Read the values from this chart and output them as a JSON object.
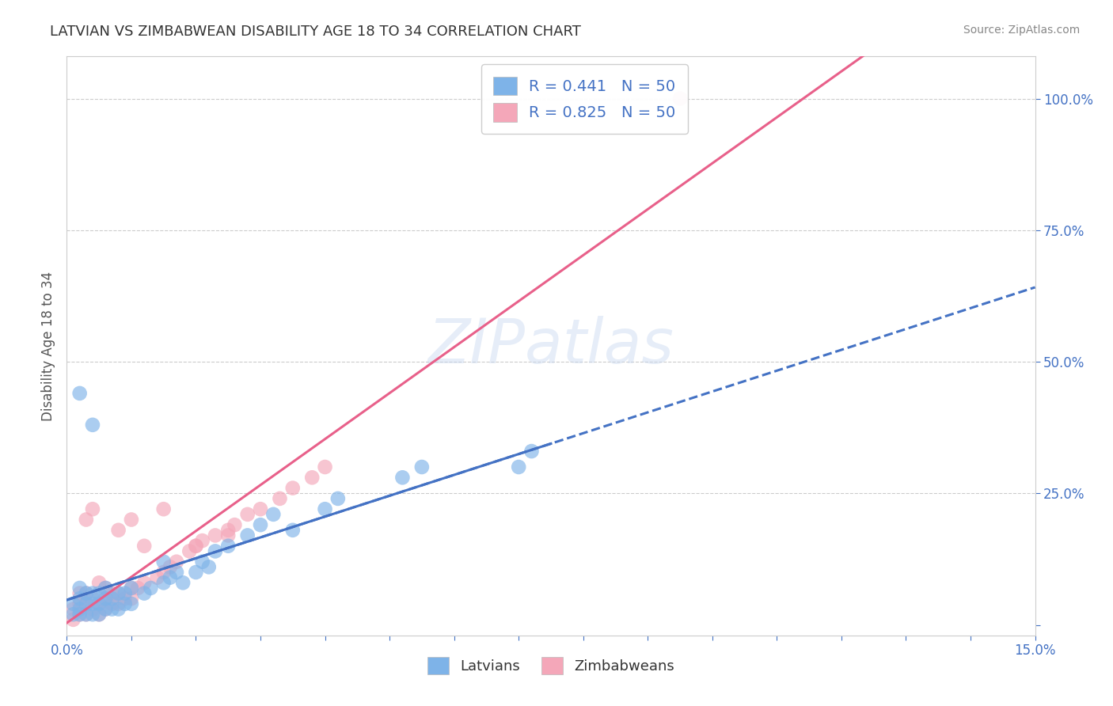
{
  "title": "LATVIAN VS ZIMBABWEAN DISABILITY AGE 18 TO 34 CORRELATION CHART",
  "source_text": "Source: ZipAtlas.com",
  "ylabel_text": "Disability Age 18 to 34",
  "xlim": [
    0.0,
    0.15
  ],
  "ylim": [
    -0.02,
    1.08
  ],
  "latvian_color": "#7eb3e8",
  "zimbabwean_color": "#f4a7b9",
  "latvian_line_color": "#4472c4",
  "zimbabwean_line_color": "#e8608a",
  "legend_R_latvian": "R = 0.441   N = 50",
  "legend_R_zimbabwean": "R = 0.825   N = 50",
  "legend_label_latvian": "Latvians",
  "legend_label_zimbabwean": "Zimbabweans",
  "background_color": "#ffffff",
  "grid_color": "#cccccc",
  "watermark": "ZIPatlas",
  "latvian_x": [
    0.001,
    0.001,
    0.002,
    0.002,
    0.002,
    0.002,
    0.003,
    0.003,
    0.003,
    0.004,
    0.004,
    0.004,
    0.005,
    0.005,
    0.005,
    0.006,
    0.006,
    0.006,
    0.007,
    0.007,
    0.008,
    0.008,
    0.009,
    0.009,
    0.01,
    0.01,
    0.012,
    0.013,
    0.015,
    0.015,
    0.016,
    0.017,
    0.018,
    0.02,
    0.021,
    0.022,
    0.023,
    0.025,
    0.028,
    0.03,
    0.032,
    0.035,
    0.04,
    0.042,
    0.052,
    0.055,
    0.07,
    0.072,
    0.002,
    0.004
  ],
  "latvian_y": [
    0.02,
    0.04,
    0.02,
    0.03,
    0.05,
    0.07,
    0.02,
    0.04,
    0.06,
    0.02,
    0.04,
    0.06,
    0.02,
    0.04,
    0.06,
    0.03,
    0.05,
    0.07,
    0.03,
    0.05,
    0.03,
    0.06,
    0.04,
    0.06,
    0.04,
    0.07,
    0.06,
    0.07,
    0.08,
    0.12,
    0.09,
    0.1,
    0.08,
    0.1,
    0.12,
    0.11,
    0.14,
    0.15,
    0.17,
    0.19,
    0.21,
    0.18,
    0.22,
    0.24,
    0.28,
    0.3,
    0.3,
    0.33,
    0.44,
    0.38
  ],
  "zimbabwean_x": [
    0.001,
    0.001,
    0.002,
    0.002,
    0.002,
    0.003,
    0.003,
    0.003,
    0.004,
    0.004,
    0.005,
    0.005,
    0.006,
    0.006,
    0.006,
    0.007,
    0.007,
    0.008,
    0.008,
    0.009,
    0.01,
    0.01,
    0.011,
    0.012,
    0.014,
    0.015,
    0.016,
    0.017,
    0.019,
    0.02,
    0.021,
    0.023,
    0.025,
    0.026,
    0.028,
    0.03,
    0.033,
    0.035,
    0.038,
    0.04,
    0.003,
    0.004,
    0.005,
    0.008,
    0.01,
    0.012,
    0.015,
    0.02,
    0.095,
    0.025
  ],
  "zimbabwean_y": [
    0.01,
    0.03,
    0.02,
    0.04,
    0.06,
    0.02,
    0.04,
    0.06,
    0.03,
    0.05,
    0.02,
    0.04,
    0.03,
    0.05,
    0.07,
    0.04,
    0.06,
    0.04,
    0.06,
    0.05,
    0.05,
    0.07,
    0.07,
    0.08,
    0.09,
    0.1,
    0.11,
    0.12,
    0.14,
    0.15,
    0.16,
    0.17,
    0.18,
    0.19,
    0.21,
    0.22,
    0.24,
    0.26,
    0.28,
    0.3,
    0.2,
    0.22,
    0.08,
    0.18,
    0.2,
    0.15,
    0.22,
    0.15,
    1.0,
    0.17
  ]
}
